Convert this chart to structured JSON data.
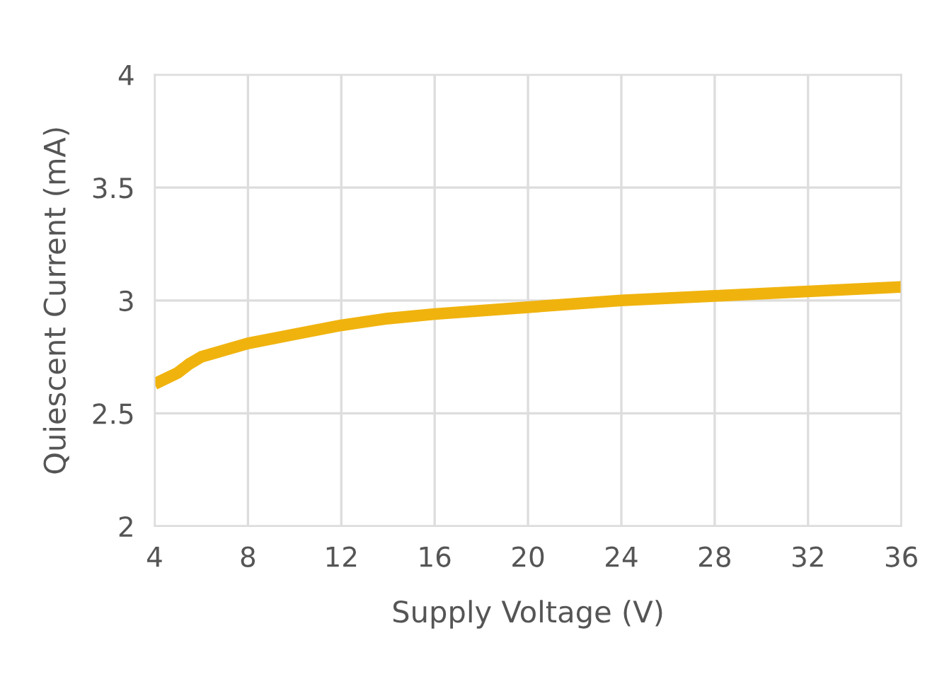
{
  "chart_data": {
    "type": "line",
    "xlabel": "Supply Voltage (V)",
    "ylabel": "Quiescent Current (mA)",
    "x": [
      4,
      5,
      5.5,
      6,
      7,
      8,
      10,
      12,
      14,
      16,
      20,
      24,
      28,
      32,
      36
    ],
    "series": [
      {
        "color": "#f0b30e",
        "values": [
          2.63,
          2.68,
          2.72,
          2.75,
          2.78,
          2.81,
          2.85,
          2.89,
          2.92,
          2.94,
          2.97,
          3.0,
          3.02,
          3.04,
          3.06
        ]
      }
    ],
    "xlim": [
      4,
      36
    ],
    "xticks": [
      4,
      8,
      12,
      16,
      20,
      24,
      28,
      32,
      36
    ],
    "ylim": [
      2,
      4
    ],
    "yticks": [
      2,
      2.5,
      3,
      3.5,
      4
    ],
    "grid": true,
    "line_style": "solid",
    "marker": "none"
  }
}
